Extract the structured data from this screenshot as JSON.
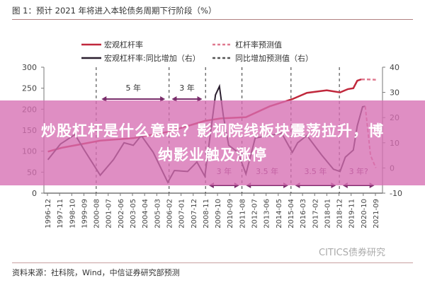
{
  "header": {
    "title": "图 1：预计 2021 年将进入本轮债务周期下行阶段（%）"
  },
  "banner": {
    "line1": "炒股杠杆是什么意思？影视院线板块震荡拉升，博",
    "line2": "纳影业触及涨停"
  },
  "footer": {
    "source": "资料来源：社科院，Wind，中信证券研究部预测",
    "watermark": "CITICS债券研究"
  },
  "colors": {
    "leverage": "#c0283c",
    "forecast": "#e07a90",
    "yoy": "#2a1e2e",
    "arrow": "#7a2d6b",
    "banner": "#d66eb2"
  },
  "chart_data": {
    "type": "line",
    "title": "",
    "legend": {
      "position": "top",
      "entries": [
        "宏观杠杆率",
        "杠杆率预测值",
        "宏观杠杆率:同比增加（右）",
        "同比增加预测值（右）"
      ]
    },
    "left_axis": {
      "range": [
        0,
        300
      ],
      "ticks": [
        "0",
        "50",
        "100",
        "150",
        "200",
        "250",
        "300"
      ]
    },
    "right_axis": {
      "range": [
        -10,
        40
      ],
      "ticks": [
        "-10",
        "0",
        "10",
        "20",
        "30",
        "40"
      ]
    },
    "x_ticks": [
      "1996-12",
      "1997-11",
      "1998-10",
      "1999-09",
      "2000-08",
      "2001-07",
      "2002-06",
      "2003-05",
      "2004-04",
      "2005-03",
      "2006-02",
      "2007-01",
      "2007-12",
      "2008-11",
      "2009-10",
      "2010-09",
      "2011-08",
      "2012-07",
      "2013-06",
      "2014-05",
      "2015-04",
      "2016-03",
      "2017-02",
      "2018-01",
      "2018-12",
      "2019-11",
      "2020-10",
      "2021-09"
    ],
    "series": [
      {
        "name": "宏观杠杆率",
        "axis": "left",
        "style": "solid",
        "points": [
          [
            1996.95,
            99
          ],
          [
            1998,
            108
          ],
          [
            2000.9,
            125
          ],
          [
            2003.4,
            131
          ],
          [
            2006.0,
            146
          ],
          [
            2008.8,
            172
          ],
          [
            2010,
            178
          ],
          [
            2011.9,
            181
          ],
          [
            2013.7,
            207
          ],
          [
            2015.4,
            224
          ],
          [
            2016.5,
            239
          ],
          [
            2018,
            245
          ],
          [
            2019.0,
            240
          ],
          [
            2019.6,
            248
          ],
          [
            2020.0,
            250
          ],
          [
            2020.3,
            268
          ],
          [
            2020.6,
            271
          ]
        ]
      },
      {
        "name": "杠杆率预测值",
        "axis": "left",
        "style": "dashed",
        "points": [
          [
            2020.6,
            271
          ],
          [
            2021.1,
            271
          ],
          [
            2021.7,
            270
          ]
        ]
      },
      {
        "name": "宏观杠杆率:同比增加（右）",
        "axis": "right",
        "style": "solid",
        "points": [
          [
            1996.95,
            3.3
          ],
          [
            1997.9,
            9.5
          ],
          [
            1999.0,
            13.3
          ],
          [
            1999.7,
            7.1
          ],
          [
            2000.9,
            -2.9
          ],
          [
            2001.9,
            3.3
          ],
          [
            2002.7,
            10
          ],
          [
            2003.4,
            9
          ],
          [
            2004.0,
            12.9
          ],
          [
            2004.9,
            6.2
          ],
          [
            2006.0,
            -5.7
          ],
          [
            2006.5,
            -1
          ],
          [
            2007.5,
            -1.4
          ],
          [
            2008.2,
            2.4
          ],
          [
            2008.8,
            -3.3
          ],
          [
            2009.6,
            29
          ],
          [
            2009.9,
            32.4
          ],
          [
            2010.2,
            20.5
          ],
          [
            2010.6,
            9
          ],
          [
            2011.3,
            6.2
          ],
          [
            2011.9,
            -2.4
          ],
          [
            2012.6,
            11.9
          ],
          [
            2013.7,
            12.9
          ],
          [
            2014.6,
            13.8
          ],
          [
            2015.4,
            6.2
          ],
          [
            2015.8,
            10
          ],
          [
            2016.5,
            12.9
          ],
          [
            2017.6,
            5.2
          ],
          [
            2018.5,
            -0.5
          ],
          [
            2019.0,
            -1.4
          ],
          [
            2019.4,
            4.3
          ],
          [
            2020.0,
            7.1
          ],
          [
            2020.3,
            16.7
          ],
          [
            2020.7,
            24.3
          ],
          [
            2020.9,
            24.5
          ]
        ]
      },
      {
        "name": "同比增加预测值（右）",
        "axis": "right",
        "style": "dashed",
        "points": [
          [
            2020.9,
            24.5
          ],
          [
            2021.1,
            15
          ],
          [
            2021.3,
            5
          ],
          [
            2021.7,
            0
          ]
        ]
      }
    ],
    "cycle_markers": [
      2000.6,
      2006.1,
      2008.85,
      2011.6,
      2015.3,
      2018.95
    ],
    "annotations": [
      {
        "label": "5 年",
        "from": 2001.0,
        "to": 2005.8,
        "position": "top"
      },
      {
        "label": "3 年",
        "from": 2006.3,
        "to": 2008.6,
        "position": "top"
      },
      {
        "label": "3 年",
        "from": 2009.1,
        "to": 2011.4,
        "position": "bottom"
      },
      {
        "label": "3.5 年",
        "from": 2011.9,
        "to": 2015.1,
        "position": "bottom"
      },
      {
        "label": "3.5 年",
        "from": 2015.6,
        "to": 2018.7,
        "position": "bottom"
      },
      {
        "label": "3 年?",
        "from": 2019.2,
        "to": 2021.6,
        "position": "bottom"
      }
    ]
  }
}
